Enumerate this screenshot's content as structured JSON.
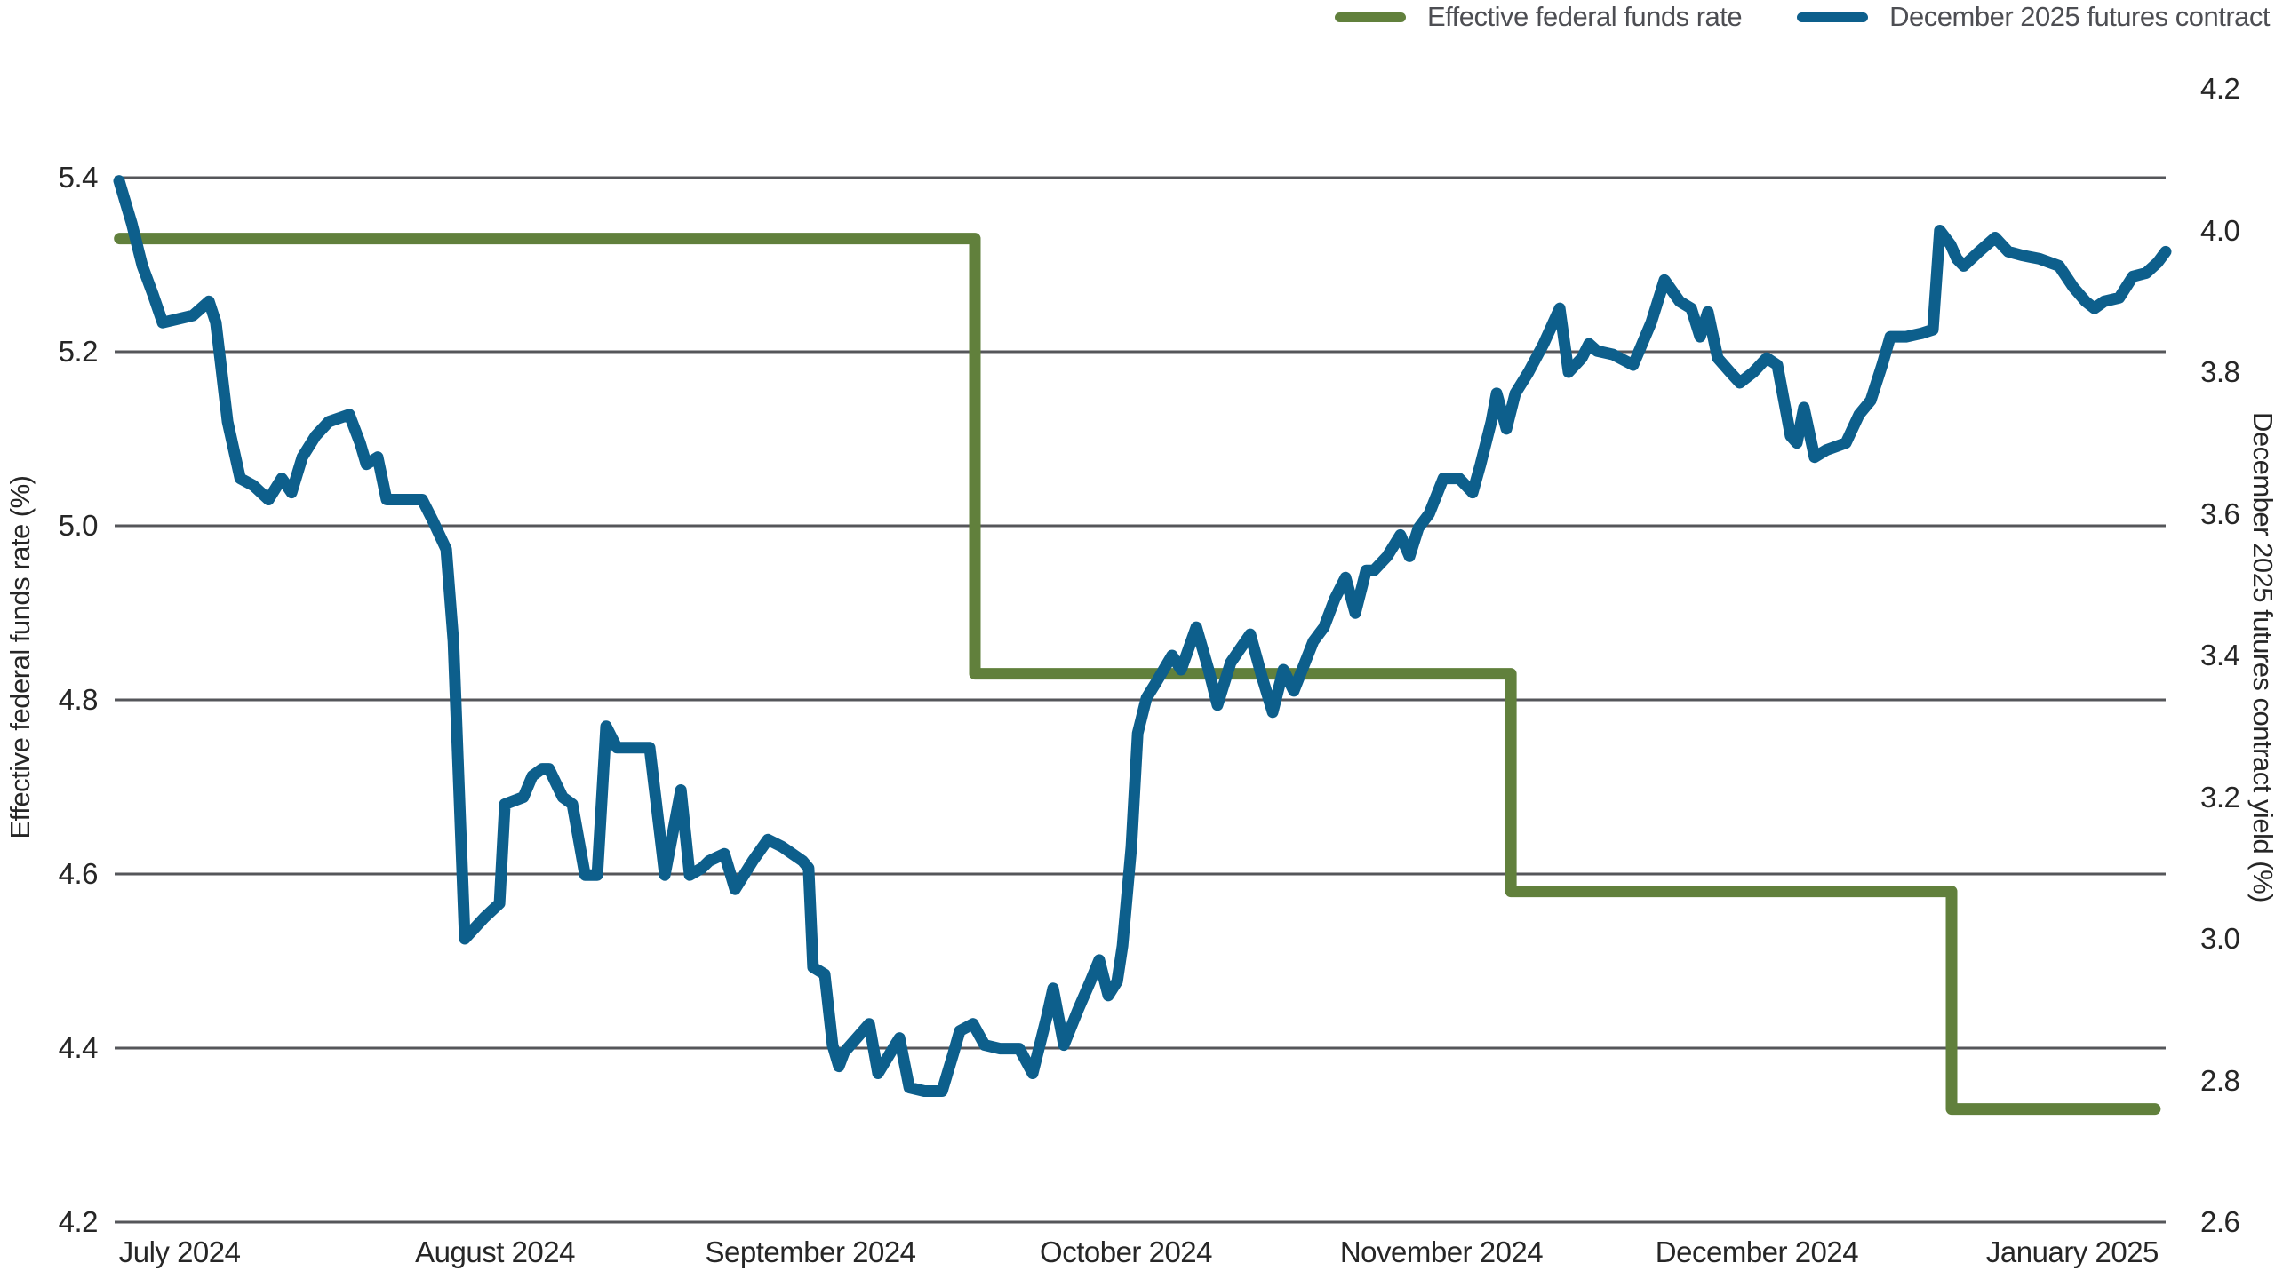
{
  "legend": {
    "items": [
      {
        "label": "Effective federal funds rate",
        "color": "#61803C"
      },
      {
        "label": "December 2025 futures contract",
        "color": "#0D5F8C"
      }
    ]
  },
  "left_axis": {
    "title": "Effective federal funds rate (%)",
    "min": 4.2,
    "max": 5.4,
    "tick_values": [
      5.4,
      5.2,
      5.0,
      4.8,
      4.6,
      4.4,
      4.2
    ],
    "tick_labels": [
      "5.4",
      "5.2",
      "5.0",
      "4.8",
      "4.6",
      "4.4",
      "4.2"
    ],
    "gridline_values": [
      5.4,
      5.2,
      5.0,
      4.8,
      4.6,
      4.4
    ]
  },
  "right_axis": {
    "title": "December 2025 futures contract yield (%)",
    "min": 2.6,
    "max": 4.2,
    "tick_values": [
      4.2,
      4.0,
      3.8,
      3.6,
      3.4,
      3.2,
      3.0,
      2.8,
      2.6
    ],
    "tick_labels": [
      "4.2",
      "4.0",
      "3.8",
      "3.6",
      "3.4",
      "3.2",
      "3.0",
      "2.8",
      "2.6"
    ]
  },
  "x_axis": {
    "unit": "months since 2024-07-01",
    "tick_positions": [
      0,
      1,
      2,
      3,
      4,
      5,
      6
    ],
    "tick_labels": [
      "July 2024",
      "August 2024",
      "September 2024",
      "October 2024",
      "November 2024",
      "December 2024",
      "January 2025"
    ]
  },
  "chart_data": {
    "type": "line",
    "x_unit": "months since 2024-07-01 (chart spans ~25 Jun 2024 to ~10 Jan 2025)",
    "grid": "horizontal gridlines at left-axis ticks",
    "legend_position": "top-right",
    "colors": {
      "grid": "#55565A",
      "effr": "#61803C",
      "futures": "#0D5F8C"
    },
    "series": [
      {
        "name": "Effective federal funds rate",
        "axis": "left",
        "color": "#61803C",
        "style": "step",
        "points": [
          [
            -0.19,
            5.33
          ],
          [
            2.521,
            5.33
          ],
          [
            2.521,
            4.83
          ],
          [
            4.22,
            4.83
          ],
          [
            4.22,
            4.58
          ],
          [
            5.617,
            4.58
          ],
          [
            5.617,
            4.33
          ],
          [
            6.262,
            4.33
          ]
        ]
      },
      {
        "name": "December 2025 futures contract",
        "axis": "right",
        "color": "#0D5F8C",
        "style": "line",
        "points": [
          [
            -0.192,
            4.07
          ],
          [
            -0.152,
            4.01
          ],
          [
            -0.118,
            3.95
          ],
          [
            -0.085,
            3.91
          ],
          [
            -0.054,
            3.87
          ],
          [
            -0.006,
            3.875
          ],
          [
            0.042,
            3.88
          ],
          [
            0.093,
            3.9
          ],
          [
            0.115,
            3.87
          ],
          [
            0.152,
            3.73
          ],
          [
            0.192,
            3.65
          ],
          [
            0.234,
            3.64
          ],
          [
            0.282,
            3.62
          ],
          [
            0.324,
            3.65
          ],
          [
            0.355,
            3.63
          ],
          [
            0.389,
            3.68
          ],
          [
            0.431,
            3.71
          ],
          [
            0.473,
            3.73
          ],
          [
            0.538,
            3.74
          ],
          [
            0.572,
            3.7
          ],
          [
            0.592,
            3.67
          ],
          [
            0.628,
            3.68
          ],
          [
            0.656,
            3.62
          ],
          [
            0.713,
            3.62
          ],
          [
            0.769,
            3.62
          ],
          [
            0.803,
            3.59
          ],
          [
            0.845,
            3.55
          ],
          [
            0.868,
            3.42
          ],
          [
            0.904,
            3.0
          ],
          [
            0.966,
            3.03
          ],
          [
            1.014,
            3.05
          ],
          [
            1.031,
            3.19
          ],
          [
            1.09,
            3.2
          ],
          [
            1.118,
            3.23
          ],
          [
            1.149,
            3.24
          ],
          [
            1.171,
            3.24
          ],
          [
            1.214,
            3.2
          ],
          [
            1.245,
            3.19
          ],
          [
            1.285,
            3.09
          ],
          [
            1.324,
            3.09
          ],
          [
            1.352,
            3.3
          ],
          [
            1.386,
            3.27
          ],
          [
            1.49,
            3.27
          ],
          [
            1.538,
            3.09
          ],
          [
            1.589,
            3.21
          ],
          [
            1.617,
            3.09
          ],
          [
            1.656,
            3.1
          ],
          [
            1.679,
            3.11
          ],
          [
            1.727,
            3.12
          ],
          [
            1.761,
            3.07
          ],
          [
            1.817,
            3.11
          ],
          [
            1.865,
            3.14
          ],
          [
            1.91,
            3.13
          ],
          [
            1.975,
            3.11
          ],
          [
            1.994,
            3.1
          ],
          [
            2.008,
            2.96
          ],
          [
            2.045,
            2.95
          ],
          [
            2.07,
            2.85
          ],
          [
            2.09,
            2.82
          ],
          [
            2.107,
            2.84
          ],
          [
            2.186,
            2.88
          ],
          [
            2.214,
            2.81
          ],
          [
            2.268,
            2.85
          ],
          [
            2.282,
            2.86
          ],
          [
            2.313,
            2.79
          ],
          [
            2.361,
            2.785
          ],
          [
            2.417,
            2.785
          ],
          [
            2.454,
            2.84
          ],
          [
            2.473,
            2.87
          ],
          [
            2.515,
            2.88
          ],
          [
            2.552,
            2.85
          ],
          [
            2.6,
            2.845
          ],
          [
            2.662,
            2.845
          ],
          [
            2.704,
            2.81
          ],
          [
            2.749,
            2.89
          ],
          [
            2.769,
            2.93
          ],
          [
            2.803,
            2.85
          ],
          [
            2.848,
            2.9
          ],
          [
            2.887,
            2.94
          ],
          [
            2.915,
            2.97
          ],
          [
            2.944,
            2.92
          ],
          [
            2.972,
            2.94
          ],
          [
            2.989,
            2.99
          ],
          [
            3.017,
            3.13
          ],
          [
            3.037,
            3.29
          ],
          [
            3.065,
            3.34
          ],
          [
            3.093,
            3.36
          ],
          [
            3.146,
            3.4
          ],
          [
            3.175,
            3.38
          ],
          [
            3.223,
            3.44
          ],
          [
            3.262,
            3.38
          ],
          [
            3.29,
            3.33
          ],
          [
            3.332,
            3.39
          ],
          [
            3.394,
            3.43
          ],
          [
            3.431,
            3.37
          ],
          [
            3.465,
            3.32
          ],
          [
            3.499,
            3.38
          ],
          [
            3.532,
            3.35
          ],
          [
            3.594,
            3.42
          ],
          [
            3.628,
            3.44
          ],
          [
            3.662,
            3.48
          ],
          [
            3.696,
            3.51
          ],
          [
            3.727,
            3.46
          ],
          [
            3.761,
            3.52
          ],
          [
            3.786,
            3.52
          ],
          [
            3.828,
            3.54
          ],
          [
            3.87,
            3.57
          ],
          [
            3.899,
            3.54
          ],
          [
            3.927,
            3.58
          ],
          [
            3.961,
            3.6
          ],
          [
            4.006,
            3.65
          ],
          [
            4.056,
            3.65
          ],
          [
            4.099,
            3.63
          ],
          [
            4.124,
            3.67
          ],
          [
            4.158,
            3.73
          ],
          [
            4.175,
            3.77
          ],
          [
            4.206,
            3.72
          ],
          [
            4.234,
            3.77
          ],
          [
            4.276,
            3.8
          ],
          [
            4.324,
            3.84
          ],
          [
            4.375,
            3.89
          ],
          [
            4.403,
            3.8
          ],
          [
            4.445,
            3.82
          ],
          [
            4.468,
            3.84
          ],
          [
            4.493,
            3.83
          ],
          [
            4.544,
            3.825
          ],
          [
            4.608,
            3.81
          ],
          [
            4.665,
            3.87
          ],
          [
            4.707,
            3.93
          ],
          [
            4.755,
            3.9
          ],
          [
            4.792,
            3.89
          ],
          [
            4.82,
            3.85
          ],
          [
            4.845,
            3.885
          ],
          [
            4.876,
            3.82
          ],
          [
            4.915,
            3.8
          ],
          [
            4.946,
            3.785
          ],
          [
            4.989,
            3.8
          ],
          [
            5.031,
            3.82
          ],
          [
            5.065,
            3.81
          ],
          [
            5.107,
            3.71
          ],
          [
            5.127,
            3.7
          ],
          [
            5.149,
            3.75
          ],
          [
            5.183,
            3.68
          ],
          [
            5.22,
            3.69
          ],
          [
            5.282,
            3.7
          ],
          [
            5.324,
            3.74
          ],
          [
            5.361,
            3.76
          ],
          [
            5.397,
            3.81
          ],
          [
            5.423,
            3.85
          ],
          [
            5.473,
            3.85
          ],
          [
            5.524,
            3.855
          ],
          [
            5.558,
            3.86
          ],
          [
            5.58,
            4.0
          ],
          [
            5.614,
            3.98
          ],
          [
            5.634,
            3.96
          ],
          [
            5.656,
            3.95
          ],
          [
            5.704,
            3.97
          ],
          [
            5.755,
            3.99
          ],
          [
            5.797,
            3.97
          ],
          [
            5.839,
            3.965
          ],
          [
            5.896,
            3.96
          ],
          [
            5.958,
            3.95
          ],
          [
            6.003,
            3.92
          ],
          [
            6.042,
            3.9
          ],
          [
            6.07,
            3.89
          ],
          [
            6.101,
            3.9
          ],
          [
            6.149,
            3.905
          ],
          [
            6.192,
            3.935
          ],
          [
            6.234,
            3.94
          ],
          [
            6.271,
            3.955
          ],
          [
            6.296,
            3.97
          ]
        ]
      }
    ]
  }
}
